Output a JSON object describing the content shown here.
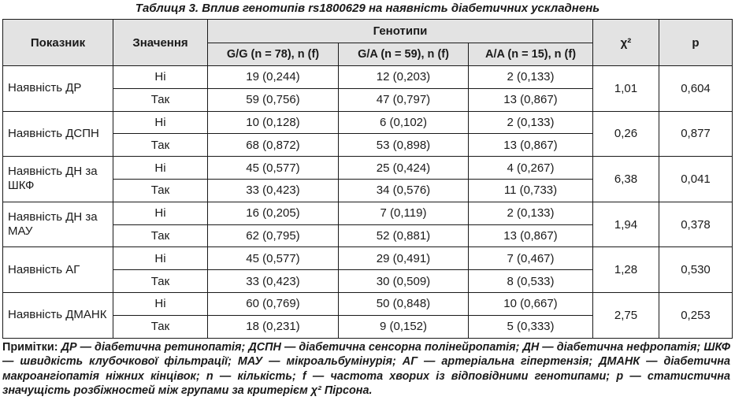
{
  "caption": "Таблиця 3.  Вплив генотипів rs1800629 на наявність діабетичних ускладнень",
  "header": {
    "indicator": "Показник",
    "value": "Значення",
    "genotypes": "Генотипи",
    "gg": "G/G (n = 78), n (f)",
    "ga": "G/A (n = 59), n (f)",
    "aa": "A/A (n = 15), n (f)",
    "chi": "χ²",
    "p": "p"
  },
  "rows": [
    {
      "indicator": "Наявність ДР",
      "no": [
        "Ні",
        "19 (0,244)",
        "12 (0,203)",
        "2 (0,133)"
      ],
      "yes": [
        "Так",
        "59 (0,756)",
        "47 (0,797)",
        "13 (0,867)"
      ],
      "chi": "1,01",
      "p": "0,604"
    },
    {
      "indicator": "Наявність ДСПН",
      "no": [
        "Ні",
        "10 (0,128)",
        "6 (0,102)",
        "2 (0,133)"
      ],
      "yes": [
        "Так",
        "68 (0,872)",
        "53 (0,898)",
        "13 (0,867)"
      ],
      "chi": "0,26",
      "p": "0,877"
    },
    {
      "indicator": "Наявність ДН за ШКФ",
      "no": [
        "Ні",
        "45 (0,577)",
        "25 (0,424)",
        "4 (0,267)"
      ],
      "yes": [
        "Так",
        "33 (0,423)",
        "34 (0,576)",
        "11 (0,733)"
      ],
      "chi": "6,38",
      "p": "0,041"
    },
    {
      "indicator": "Наявність ДН за МАУ",
      "no": [
        "Ні",
        "16 (0,205)",
        "7 (0,119)",
        "2 (0,133)"
      ],
      "yes": [
        "Так",
        "62 (0,795)",
        "52 (0,881)",
        "13 (0,867)"
      ],
      "chi": "1,94",
      "p": "0,378"
    },
    {
      "indicator": "Наявність АГ",
      "no": [
        "Ні",
        "45 (0,577)",
        "29 (0,491)",
        "7 (0,467)"
      ],
      "yes": [
        "Так",
        "33 (0,423)",
        "30 (0,509)",
        "8 (0,533)"
      ],
      "chi": "1,28",
      "p": "0,530"
    },
    {
      "indicator": "Наявність ДМАНК",
      "no": [
        "Ні",
        "60 (0,769)",
        "50 (0,848)",
        "10 (0,667)"
      ],
      "yes": [
        "Так",
        "18 (0,231)",
        "9 (0,152)",
        "5 (0,333)"
      ],
      "chi": "2,75",
      "p": "0,253"
    }
  ],
  "notes": {
    "label": "Примітки:",
    "text": " ДР — діабетична ретинопатія; ДСПН — діабетична сенсорна полінейропатія; ДН — діабетична нефропатія; ШКФ — швидкість клубочкової фільтрації; МАУ — мікроальбумінурія; АГ — артеріальна гіпертензія; ДМАНК — діабетична макроангіопатія ніжних кінцівок; n — кількість; f — частота хворих із відповідними генотипами; p — статистична значущість розбіжностей між групами за критерієм χ² Пірсона."
  }
}
